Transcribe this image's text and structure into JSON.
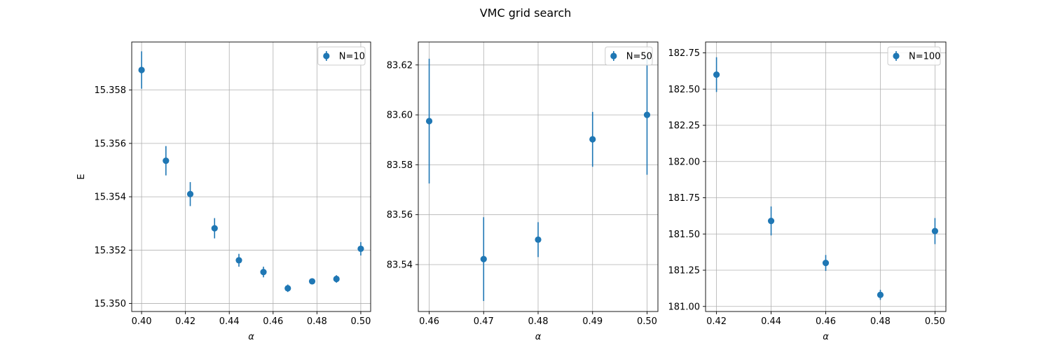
{
  "figure": {
    "title": "VMC grid search"
  },
  "colors": {
    "series": "#1f77b4",
    "grid": "#b0b0b0",
    "axes": "#000000",
    "legend_border": "#cccccc"
  },
  "chart_data": [
    {
      "type": "scatter",
      "error_bars": true,
      "grid": true,
      "legend_position": "top-right",
      "xlabel": "α",
      "ylabel": "E",
      "xlim": [
        0.3955,
        0.5045
      ],
      "ylim": [
        15.3497,
        15.3598
      ],
      "xticks": [
        0.4,
        0.42,
        0.44,
        0.46,
        0.48,
        0.5
      ],
      "xtick_labels": [
        "0.40",
        "0.42",
        "0.44",
        "0.46",
        "0.48",
        "0.50"
      ],
      "yticks": [
        15.35,
        15.352,
        15.354,
        15.356,
        15.358
      ],
      "ytick_labels": [
        "15.350",
        "15.352",
        "15.354",
        "15.356",
        "15.358"
      ],
      "series": [
        {
          "name": "N=10",
          "x": [
            0.4,
            0.4111,
            0.4222,
            0.4333,
            0.4444,
            0.4556,
            0.4667,
            0.4778,
            0.4889,
            0.5
          ],
          "y": [
            15.35875,
            15.35535,
            15.3541,
            15.35282,
            15.35162,
            15.35118,
            15.35057,
            15.35083,
            15.35092,
            15.35205
          ],
          "err": [
            0.0007,
            0.00055,
            0.00045,
            0.00038,
            0.00024,
            0.0002,
            0.00014,
            0.0001,
            0.00014,
            0.00025
          ]
        }
      ]
    },
    {
      "type": "scatter",
      "error_bars": true,
      "grid": true,
      "legend_position": "top-right",
      "xlabel": "α",
      "ylabel": "",
      "xlim": [
        0.458,
        0.502
      ],
      "ylim": [
        83.5212,
        83.6292
      ],
      "xticks": [
        0.46,
        0.47,
        0.48,
        0.49,
        0.5
      ],
      "xtick_labels": [
        "0.46",
        "0.47",
        "0.48",
        "0.49",
        "0.50"
      ],
      "yticks": [
        83.54,
        83.56,
        83.58,
        83.6,
        83.62
      ],
      "ytick_labels": [
        "83.54",
        "83.56",
        "83.58",
        "83.60",
        "83.62"
      ],
      "series": [
        {
          "name": "N=50",
          "x": [
            0.46,
            0.47,
            0.48,
            0.49,
            0.5
          ],
          "y": [
            83.5975,
            83.5422,
            83.55,
            83.5902,
            83.6
          ],
          "err": [
            0.025,
            0.0168,
            0.007,
            0.011,
            0.024
          ]
        }
      ]
    },
    {
      "type": "scatter",
      "error_bars": true,
      "grid": true,
      "legend_position": "top-right",
      "xlabel": "α",
      "ylabel": "",
      "xlim": [
        0.416,
        0.504
      ],
      "ylim": [
        180.965,
        182.825
      ],
      "xticks": [
        0.42,
        0.44,
        0.46,
        0.48,
        0.5
      ],
      "xtick_labels": [
        "0.42",
        "0.44",
        "0.46",
        "0.48",
        "0.50"
      ],
      "yticks": [
        181.0,
        181.25,
        181.5,
        181.75,
        182.0,
        182.25,
        182.5,
        182.75
      ],
      "ytick_labels": [
        "181.00",
        "181.25",
        "181.50",
        "181.75",
        "182.00",
        "182.25",
        "182.50",
        "182.75"
      ],
      "series": [
        {
          "name": "N=100",
          "x": [
            0.42,
            0.44,
            0.46,
            0.48,
            0.5
          ],
          "y": [
            182.6,
            181.59,
            181.3,
            181.08,
            181.52
          ],
          "err": [
            0.12,
            0.1,
            0.055,
            0.035,
            0.09
          ]
        }
      ]
    }
  ]
}
